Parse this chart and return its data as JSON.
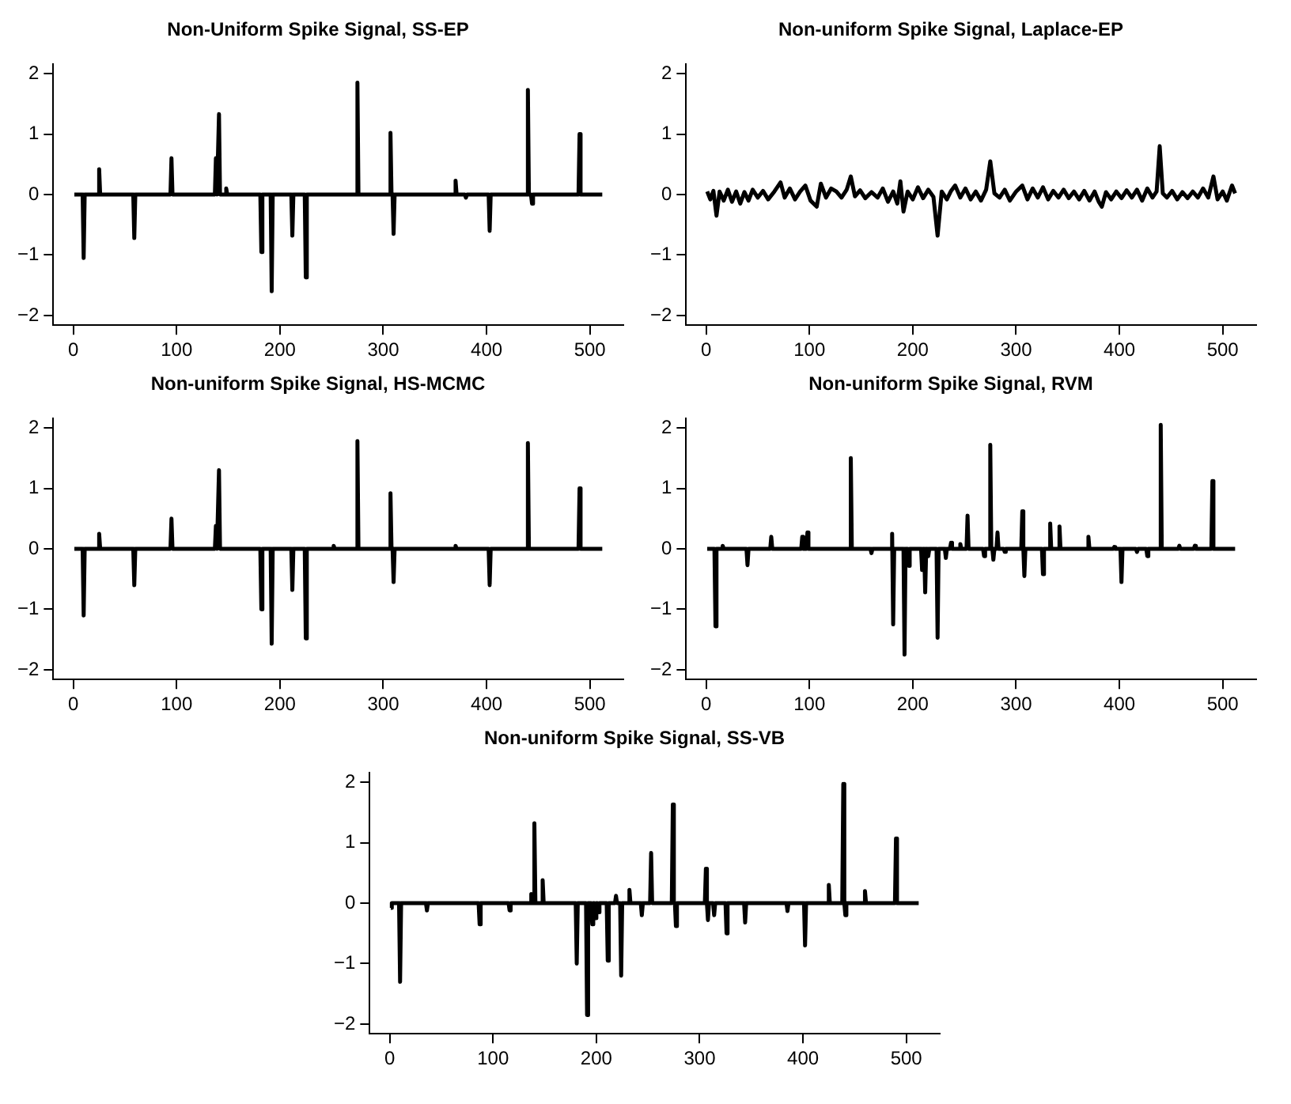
{
  "chart_data": [
    {
      "type": "line",
      "title": "Non-Uniform Spike Signal, SS-EP",
      "xlim": [
        -19.4,
        532.4
      ],
      "ylim": [
        -2.16,
        2.16
      ],
      "xticks": [
        0,
        100,
        200,
        300,
        400,
        500
      ],
      "yticks": [
        -2,
        -1,
        0,
        1,
        2
      ],
      "legend": false,
      "series": [
        {
          "color": "#000000",
          "x": [
            1,
            9,
            10,
            11,
            24,
            25,
            26,
            58,
            59,
            60,
            94,
            95,
            96,
            137,
            138,
            139,
            140,
            141,
            142,
            147,
            148,
            149,
            181,
            182,
            183,
            191,
            192,
            193,
            211,
            212,
            213,
            224,
            225,
            226,
            274,
            275,
            276,
            306,
            307,
            308,
            309,
            310,
            311,
            369,
            370,
            371,
            379,
            380,
            381,
            402,
            403,
            404,
            439,
            440,
            441,
            443,
            444,
            445,
            489,
            490,
            491,
            512
          ],
          "values": [
            0,
            0,
            -1.05,
            0,
            0,
            0.42,
            0,
            0,
            -0.72,
            0,
            0,
            0.6,
            0,
            0,
            0.6,
            0,
            0,
            1.33,
            0,
            0,
            0.1,
            0,
            0,
            -0.95,
            0,
            0,
            -1.6,
            0,
            0,
            -0.68,
            0,
            0,
            -1.37,
            0,
            0,
            1.85,
            0,
            0,
            1.02,
            0,
            0,
            -0.65,
            0,
            0,
            0.23,
            0,
            0,
            -0.05,
            0,
            0,
            -0.6,
            0,
            0,
            1.73,
            0,
            0,
            -0.15,
            0,
            0,
            1.0,
            0,
            0
          ]
        }
      ]
    },
    {
      "type": "line",
      "title": "Non-uniform Spike Signal, Laplace-EP",
      "xlim": [
        -19.4,
        532.4
      ],
      "ylim": [
        -2.16,
        2.16
      ],
      "xticks": [
        0,
        100,
        200,
        300,
        400,
        500
      ],
      "yticks": [
        -2,
        -1,
        0,
        1,
        2
      ],
      "legend": false,
      "series": [
        {
          "color": "#000000",
          "x": [
            1,
            4,
            7,
            10,
            13,
            17,
            21,
            25,
            29,
            33,
            37,
            41,
            45,
            50,
            55,
            60,
            66,
            72,
            76,
            81,
            86,
            91,
            96,
            101,
            107,
            111,
            116,
            121,
            126,
            131,
            136,
            140,
            144,
            149,
            154,
            160,
            166,
            171,
            176,
            181,
            185,
            188,
            191,
            195,
            200,
            205,
            210,
            215,
            220,
            224,
            228,
            233,
            237,
            241,
            246,
            251,
            256,
            261,
            266,
            271,
            275,
            279,
            284,
            289,
            294,
            300,
            306,
            311,
            316,
            321,
            326,
            331,
            336,
            341,
            346,
            351,
            356,
            361,
            366,
            371,
            376,
            380,
            383,
            387,
            392,
            397,
            402,
            407,
            412,
            417,
            422,
            427,
            432,
            436,
            439,
            442,
            446,
            451,
            456,
            461,
            466,
            471,
            476,
            481,
            486,
            491,
            495,
            500,
            504,
            509,
            512
          ],
          "values": [
            0.05,
            -0.08,
            0.06,
            -0.35,
            0.05,
            -0.1,
            0.08,
            -0.12,
            0.05,
            -0.15,
            0.04,
            -0.1,
            0.08,
            -0.05,
            0.06,
            -0.08,
            0.05,
            0.2,
            -0.05,
            0.1,
            -0.08,
            0.05,
            0.15,
            -0.1,
            -0.2,
            0.18,
            -0.05,
            0.1,
            0.05,
            -0.05,
            0.08,
            0.3,
            -0.03,
            0.07,
            -0.06,
            0.04,
            -0.05,
            0.1,
            -0.12,
            0.05,
            -0.15,
            0.22,
            -0.28,
            0.05,
            -0.08,
            0.12,
            -0.06,
            0.08,
            -0.04,
            -0.68,
            0.05,
            -0.08,
            0.06,
            0.15,
            -0.05,
            0.1,
            -0.08,
            0.05,
            -0.1,
            0.08,
            0.55,
            0.02,
            -0.05,
            0.08,
            -0.1,
            0.05,
            0.15,
            -0.08,
            0.1,
            -0.05,
            0.12,
            -0.08,
            0.06,
            -0.05,
            0.08,
            -0.06,
            0.05,
            -0.08,
            0.06,
            -0.1,
            0.05,
            -0.12,
            -0.2,
            0.04,
            -0.08,
            0.05,
            -0.06,
            0.07,
            -0.05,
            0.08,
            -0.1,
            0.1,
            -0.05,
            0.05,
            0.8,
            0.02,
            -0.05,
            0.06,
            -0.08,
            0.04,
            -0.06,
            0.05,
            -0.05,
            0.1,
            -0.05,
            0.3,
            -0.08,
            0.05,
            -0.1,
            0.15,
            0.02
          ]
        }
      ]
    },
    {
      "type": "line",
      "title": "Non-uniform Spike Signal, HS-MCMC",
      "xlim": [
        -19.4,
        532.4
      ],
      "ylim": [
        -2.16,
        2.16
      ],
      "xticks": [
        0,
        100,
        200,
        300,
        400,
        500
      ],
      "yticks": [
        -2,
        -1,
        0,
        1,
        2
      ],
      "legend": false,
      "series": [
        {
          "color": "#000000",
          "x": [
            1,
            9,
            10,
            11,
            24,
            25,
            26,
            58,
            59,
            60,
            94,
            95,
            96,
            137,
            138,
            139,
            140,
            141,
            142,
            181,
            182,
            183,
            191,
            192,
            193,
            211,
            212,
            213,
            224,
            225,
            226,
            251,
            252,
            253,
            274,
            275,
            276,
            306,
            307,
            308,
            309,
            310,
            311,
            369,
            370,
            371,
            402,
            403,
            404,
            439,
            440,
            441,
            489,
            490,
            491,
            512
          ],
          "values": [
            0,
            0,
            -1.1,
            0,
            0,
            0.25,
            0,
            0,
            -0.6,
            0,
            0,
            0.5,
            0,
            0,
            0.38,
            0,
            0,
            1.3,
            0,
            0,
            -1.0,
            0,
            0,
            -1.57,
            0,
            0,
            -0.68,
            0,
            0,
            -1.48,
            0,
            0,
            0.05,
            0,
            0,
            1.78,
            0,
            0,
            0.92,
            0,
            0,
            -0.55,
            0,
            0,
            0.05,
            0,
            0,
            -0.6,
            0,
            0,
            1.75,
            0,
            0,
            1.0,
            0,
            0
          ]
        }
      ]
    },
    {
      "type": "line",
      "title": "Non-uniform Spike Signal, RVM",
      "xlim": [
        -19.4,
        532.4
      ],
      "ylim": [
        -2.16,
        2.16
      ],
      "xticks": [
        0,
        100,
        200,
        300,
        400,
        500
      ],
      "yticks": [
        -2,
        -1,
        0,
        1,
        2
      ],
      "legend": false,
      "series": [
        {
          "color": "#000000",
          "x": [
            1,
            8,
            9,
            10,
            15,
            16,
            17,
            39,
            40,
            41,
            62,
            63,
            64,
            92,
            93,
            94,
            97,
            98,
            99,
            139,
            140,
            141,
            159,
            160,
            161,
            179,
            180,
            181,
            182,
            191,
            192,
            193,
            195,
            196,
            197,
            208,
            209,
            210,
            211,
            212,
            213,
            214,
            215,
            216,
            223,
            224,
            225,
            231,
            232,
            233,
            236,
            237,
            238,
            245,
            246,
            247,
            252,
            253,
            254,
            268,
            269,
            270,
            274,
            275,
            276,
            277,
            278,
            279,
            281,
            282,
            283,
            288,
            289,
            290,
            305,
            306,
            307,
            308,
            309,
            325,
            326,
            327,
            332,
            333,
            334,
            341,
            342,
            343,
            369,
            370,
            371,
            394,
            395,
            396,
            401,
            402,
            403,
            416,
            417,
            418,
            426,
            427,
            428,
            439,
            440,
            441,
            457,
            458,
            459,
            472,
            473,
            474,
            489,
            490,
            491,
            512
          ],
          "values": [
            0,
            0,
            -1.28,
            0,
            0,
            0.05,
            0,
            0,
            -0.27,
            0,
            0,
            0.2,
            0,
            0,
            0.2,
            0,
            0,
            0.27,
            0,
            0,
            1.5,
            0,
            0,
            -0.07,
            0,
            0,
            0.25,
            -1.25,
            0,
            0,
            -1.75,
            0,
            0,
            -0.28,
            0,
            0,
            -0.35,
            0,
            0,
            -0.72,
            0,
            0,
            -0.12,
            0,
            0,
            -1.47,
            0,
            0,
            -0.15,
            0,
            0,
            0.1,
            0,
            0,
            0.08,
            0,
            0,
            0.55,
            0,
            0,
            -0.12,
            0,
            0,
            1.72,
            0,
            0,
            -0.18,
            0,
            0,
            0.27,
            0,
            0,
            -0.05,
            0,
            0,
            0.62,
            0,
            -0.45,
            0,
            0,
            -0.42,
            0,
            0,
            0.42,
            0,
            0,
            0.37,
            0,
            0,
            0.2,
            0,
            0,
            0.03,
            0,
            0,
            -0.55,
            0,
            0,
            -0.05,
            0,
            0,
            -0.12,
            0,
            0,
            2.05,
            0,
            0,
            0.05,
            0,
            0,
            0.05,
            0,
            0,
            1.12,
            0,
            0
          ]
        }
      ]
    },
    {
      "type": "line",
      "title": "Non-uniform Spike Signal, SS-VB",
      "xlim": [
        -19.4,
        532.4
      ],
      "ylim": [
        -2.16,
        2.16
      ],
      "xticks": [
        0,
        100,
        200,
        300,
        400,
        500
      ],
      "yticks": [
        -2,
        -1,
        0,
        1,
        2
      ],
      "legend": false,
      "series": [
        {
          "color": "#000000",
          "x": [
            1,
            2,
            9,
            10,
            11,
            35,
            36,
            37,
            86,
            87,
            88,
            115,
            116,
            117,
            136,
            137,
            138,
            139,
            140,
            141,
            147,
            148,
            149,
            180,
            181,
            182,
            190,
            191,
            192,
            195,
            196,
            197,
            198,
            199,
            200,
            201,
            202,
            203,
            210,
            211,
            212,
            218,
            219,
            220,
            223,
            224,
            225,
            231,
            232,
            233,
            243,
            244,
            245,
            252,
            253,
            254,
            273,
            274,
            275,
            276,
            277,
            278,
            305,
            306,
            307,
            308,
            309,
            313,
            314,
            315,
            325,
            326,
            327,
            343,
            344,
            345,
            384,
            385,
            386,
            401,
            402,
            403,
            424,
            425,
            426,
            438,
            439,
            440,
            441,
            442,
            459,
            460,
            461,
            489,
            490,
            491,
            512
          ],
          "values": [
            -0.08,
            0,
            0,
            -1.3,
            0,
            0,
            -0.12,
            0,
            0,
            -0.35,
            0,
            0,
            -0.12,
            0,
            0,
            0.15,
            0,
            0,
            1.32,
            0,
            0,
            0.38,
            0,
            0,
            -1.0,
            0,
            0,
            -1.85,
            0,
            0,
            -0.35,
            0,
            0,
            -0.25,
            0,
            0,
            -0.15,
            0,
            0,
            -0.95,
            0,
            0,
            0.12,
            0,
            0,
            -1.2,
            0,
            0,
            0.22,
            0,
            0,
            -0.2,
            0,
            0,
            0.83,
            0,
            0,
            1.63,
            0,
            0,
            -0.38,
            0,
            0,
            0.57,
            0,
            -0.28,
            0,
            0,
            -0.2,
            0,
            0,
            -0.5,
            0,
            0,
            -0.32,
            0,
            0,
            -0.13,
            0,
            0,
            -0.7,
            0,
            0,
            0.3,
            0,
            0,
            1.97,
            0,
            -0.2,
            0,
            0,
            0.2,
            0,
            0,
            1.07,
            0,
            0
          ]
        }
      ]
    }
  ]
}
